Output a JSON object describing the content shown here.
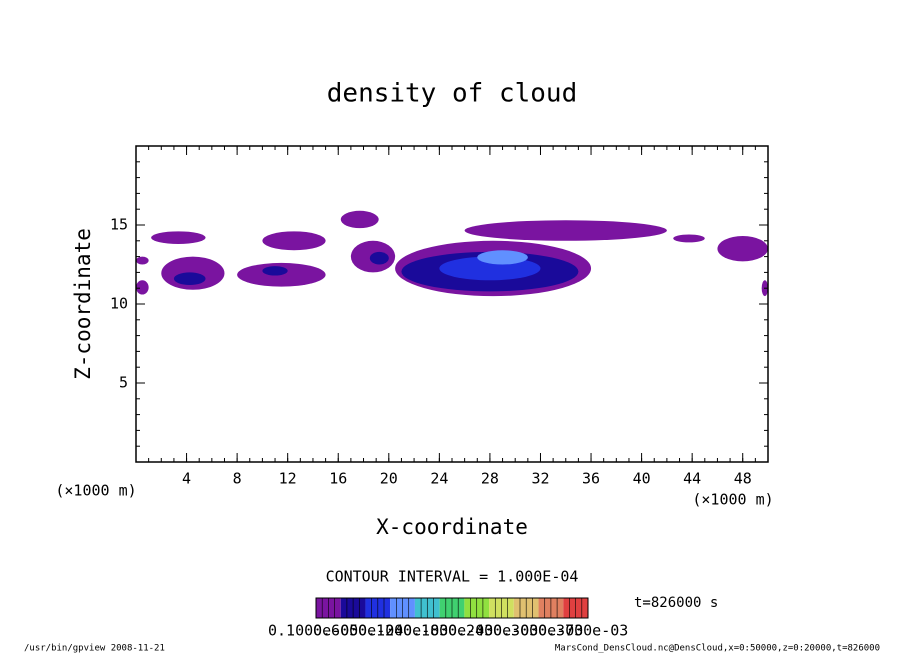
{
  "chart_data": {
    "type": "contour",
    "title": "density of cloud",
    "x_label": "X-coordinate",
    "y_label": "Z-coordinate",
    "x_unit": "(×1000 m)",
    "y_unit": "(×1000 m)",
    "xlim": [
      0,
      50
    ],
    "ylim": [
      0,
      20
    ],
    "xticks": [
      4,
      8,
      12,
      16,
      20,
      24,
      28,
      32,
      36,
      40,
      44,
      48
    ],
    "yticks": [
      5,
      10,
      15
    ],
    "minor_tick_step": 1,
    "colormap": [
      "#7a14a0",
      "#1a0a9a",
      "#2030e0",
      "#6090ff",
      "#40c0d0",
      "#40d070",
      "#90e040",
      "#d0e060",
      "#e0c070",
      "#e08060",
      "#e04040"
    ],
    "regions": [
      {
        "x": [
          0,
          1
        ],
        "z": [
          10.6,
          11.5
        ],
        "level": 0
      },
      {
        "x": [
          0,
          1
        ],
        "z": [
          12.5,
          13
        ],
        "level": 0
      },
      {
        "x": [
          1.2,
          5.5
        ],
        "z": [
          13.8,
          14.6
        ],
        "level": 0
      },
      {
        "x": [
          2,
          7
        ],
        "z": [
          10.9,
          13
        ],
        "level": 0
      },
      {
        "x": [
          3,
          5.5
        ],
        "z": [
          11.2,
          12
        ],
        "level": 1
      },
      {
        "x": [
          10,
          15
        ],
        "z": [
          13.4,
          14.6
        ],
        "level": 0
      },
      {
        "x": [
          8,
          15
        ],
        "z": [
          11.1,
          12.6
        ],
        "level": 0
      },
      {
        "x": [
          10,
          12
        ],
        "z": [
          11.8,
          12.4
        ],
        "level": 1
      },
      {
        "x": [
          16.2,
          19.2
        ],
        "z": [
          14.8,
          15.9
        ],
        "level": 0
      },
      {
        "x": [
          17,
          20.5
        ],
        "z": [
          12,
          14
        ],
        "level": 0
      },
      {
        "x": [
          18.5,
          20
        ],
        "z": [
          12.5,
          13.3
        ],
        "level": 1
      },
      {
        "x": [
          20.5,
          36
        ],
        "z": [
          10.5,
          14
        ],
        "level": 0
      },
      {
        "x": [
          21,
          35
        ],
        "z": [
          10.8,
          13.3
        ],
        "level": 1
      },
      {
        "x": [
          24,
          32
        ],
        "z": [
          11.5,
          13
        ],
        "level": 2
      },
      {
        "x": [
          27,
          31
        ],
        "z": [
          12.5,
          13.4
        ],
        "level": 3
      },
      {
        "x": [
          26,
          42
        ],
        "z": [
          14,
          15.3
        ],
        "level": 0
      },
      {
        "x": [
          42.5,
          45
        ],
        "z": [
          13.9,
          14.4
        ],
        "level": 0
      },
      {
        "x": [
          46,
          50
        ],
        "z": [
          12.7,
          14.3
        ],
        "level": 0
      },
      {
        "x": [
          49.5,
          50
        ],
        "z": [
          10.5,
          11.5
        ],
        "level": 0
      }
    ],
    "contour_interval": "CONTOUR INTERVAL = 1.000E-04",
    "time_label": "t=826000 s",
    "colorbar_labels": [
      "0.1000e-05",
      "0.6000e-04",
      "0.1200e-03",
      "0.1800e-03",
      "0.2400e-03",
      "0.3000e-03",
      "0.3700e-03"
    ],
    "footer_left": "/usr/bin/gpview  2008-11-21",
    "footer_right": "MarsCond_DensCloud.nc@DensCloud,x=0:50000,z=0:20000,t=826000"
  }
}
